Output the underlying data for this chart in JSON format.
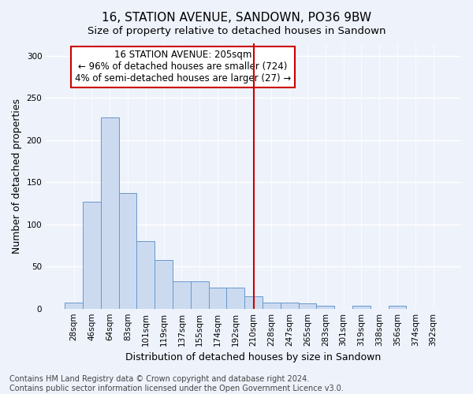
{
  "title": "16, STATION AVENUE, SANDOWN, PO36 9BW",
  "subtitle": "Size of property relative to detached houses in Sandown",
  "xlabel": "Distribution of detached houses by size in Sandown",
  "ylabel": "Number of detached properties",
  "categories": [
    "28sqm",
    "46sqm",
    "64sqm",
    "83sqm",
    "101sqm",
    "119sqm",
    "137sqm",
    "155sqm",
    "174sqm",
    "192sqm",
    "210sqm",
    "228sqm",
    "247sqm",
    "265sqm",
    "283sqm",
    "301sqm",
    "319sqm",
    "338sqm",
    "356sqm",
    "374sqm",
    "392sqm"
  ],
  "values": [
    7,
    127,
    227,
    137,
    80,
    58,
    32,
    32,
    25,
    25,
    15,
    7,
    7,
    6,
    3,
    0,
    3,
    0,
    3,
    0,
    0
  ],
  "bar_color": "#ccdaf0",
  "bar_edge_color": "#6699cc",
  "vline_color": "#cc0000",
  "vline_x": 10.0,
  "annotation_text": "16 STATION AVENUE: 205sqm\n← 96% of detached houses are smaller (724)\n4% of semi-detached houses are larger (27) →",
  "annotation_box_facecolor": "#ffffff",
  "annotation_box_edgecolor": "#cc0000",
  "ylim": [
    0,
    315
  ],
  "yticks": [
    0,
    50,
    100,
    150,
    200,
    250,
    300
  ],
  "background_color": "#eef2fb",
  "grid_color": "#ffffff",
  "footer1": "Contains HM Land Registry data © Crown copyright and database right 2024.",
  "footer2": "Contains public sector information licensed under the Open Government Licence v3.0.",
  "title_fontsize": 11,
  "subtitle_fontsize": 9.5,
  "xlabel_fontsize": 9,
  "ylabel_fontsize": 9,
  "tick_fontsize": 7.5,
  "annotation_fontsize": 8.5,
  "footer_fontsize": 7
}
